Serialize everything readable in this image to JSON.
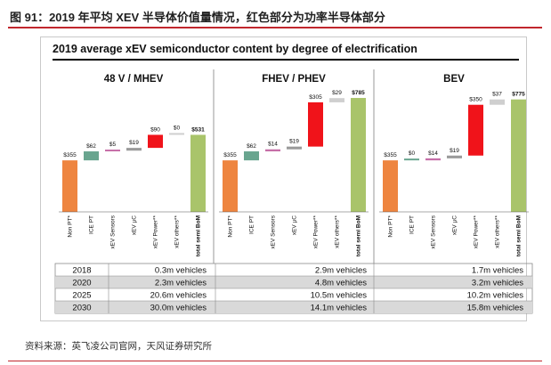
{
  "figure_title": "图 91：2019 年平均 XEV 半导体价值量情况，红色部分为功率半导体部分",
  "source": "资料来源：英飞凌公司官网，天风证券研究所",
  "colors": {
    "base": "#ee8540",
    "ice": "#69a58f",
    "sensors": "#c66fa8",
    "uc": "#9a9a9a",
    "power": "#f0131a",
    "others": "#cfcfcf",
    "total": "#a9c46a",
    "row_alt": "#d9d9d9",
    "title_rule": "#c1272d"
  },
  "chart_data": [
    {
      "type": "waterfall",
      "title": "48 V / MHEV",
      "categories": [
        "Non PT*",
        "ICE PT",
        "xEV Sensors",
        "xEV µC",
        "xEV Power**",
        "xEV others**",
        "total semi BoM"
      ],
      "values": [
        355,
        62,
        5,
        19,
        90,
        0,
        531
      ],
      "labels": [
        "$355",
        "$62",
        "$5",
        "$19",
        "$90",
        "$0",
        "$531"
      ]
    },
    {
      "type": "waterfall",
      "title": "FHEV / PHEV",
      "categories": [
        "Non PT*",
        "ICE PT",
        "xEV Sensors",
        "xEV µC",
        "xEV Power**",
        "xEV others**",
        "total semi BoM"
      ],
      "values": [
        355,
        62,
        14,
        19,
        305,
        29,
        785
      ],
      "labels": [
        "$355",
        "$62",
        "$14",
        "$19",
        "$305",
        "$29",
        "$785"
      ]
    },
    {
      "type": "waterfall",
      "title": "BEV",
      "categories": [
        "Non PT*",
        "ICE PT",
        "xEV Sensors",
        "xEV µC",
        "xEV Power**",
        "xEV others**",
        "total semi BoM"
      ],
      "values": [
        355,
        0,
        14,
        19,
        350,
        37,
        775
      ],
      "labels": [
        "$355",
        "$0",
        "$14",
        "$19",
        "$350",
        "$37",
        "$775"
      ]
    }
  ],
  "chart_title": "2019 average xEV semiconductor content by degree of electrification",
  "volume_table": {
    "years": [
      "2018",
      "2020",
      "2025",
      "2030"
    ],
    "rows": [
      [
        "0.3m vehicles",
        "2.9m vehicles",
        "1.7m vehicles"
      ],
      [
        "2.3m vehicles",
        "4.8m vehicles",
        "3.2m vehicles"
      ],
      [
        "20.6m vehicles",
        "10.5m vehicles",
        "10.2m vehicles"
      ],
      [
        "30.0m vehicles",
        "14.1m vehicles",
        "15.8m vehicles"
      ]
    ]
  }
}
